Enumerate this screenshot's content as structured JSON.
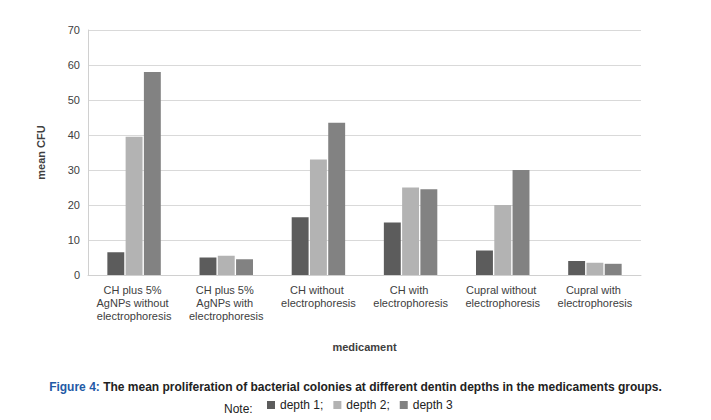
{
  "chart_data": {
    "type": "bar",
    "title": "Figure 4: The mean proliferation of bacterial colonies at different dentin depths in the medicaments groups.",
    "x_label": "medicament",
    "y_label": "mean CFU",
    "annotations": [
      "Note:"
    ],
    "categories": [
      "CH plus 5% AgNPs without electrophoresis",
      "CH plus 5% AgNPs with electrophoresis",
      "CH without electrophoresis",
      "CH with electrophoresis",
      "Cupral without electrophoresis",
      "Cupral with electrophoresis"
    ],
    "series": [
      {
        "name": "depth 1;",
        "color": "#5c5c5c",
        "values": [
          6.5,
          5,
          16.5,
          15,
          7,
          4
        ]
      },
      {
        "name": "depth 2;",
        "color": "#b3b3b3",
        "values": [
          39.5,
          5.5,
          33,
          25,
          20,
          3.5
        ]
      },
      {
        "name": "depth 3",
        "color": "#828282",
        "values": [
          58,
          4.5,
          43.5,
          24.5,
          30,
          3.2
        ]
      }
    ],
    "ylim": [
      0,
      70
    ],
    "yticks": [
      0,
      10,
      20,
      30,
      40,
      50,
      60,
      70
    ],
    "grid": true,
    "legend": "bottom"
  }
}
